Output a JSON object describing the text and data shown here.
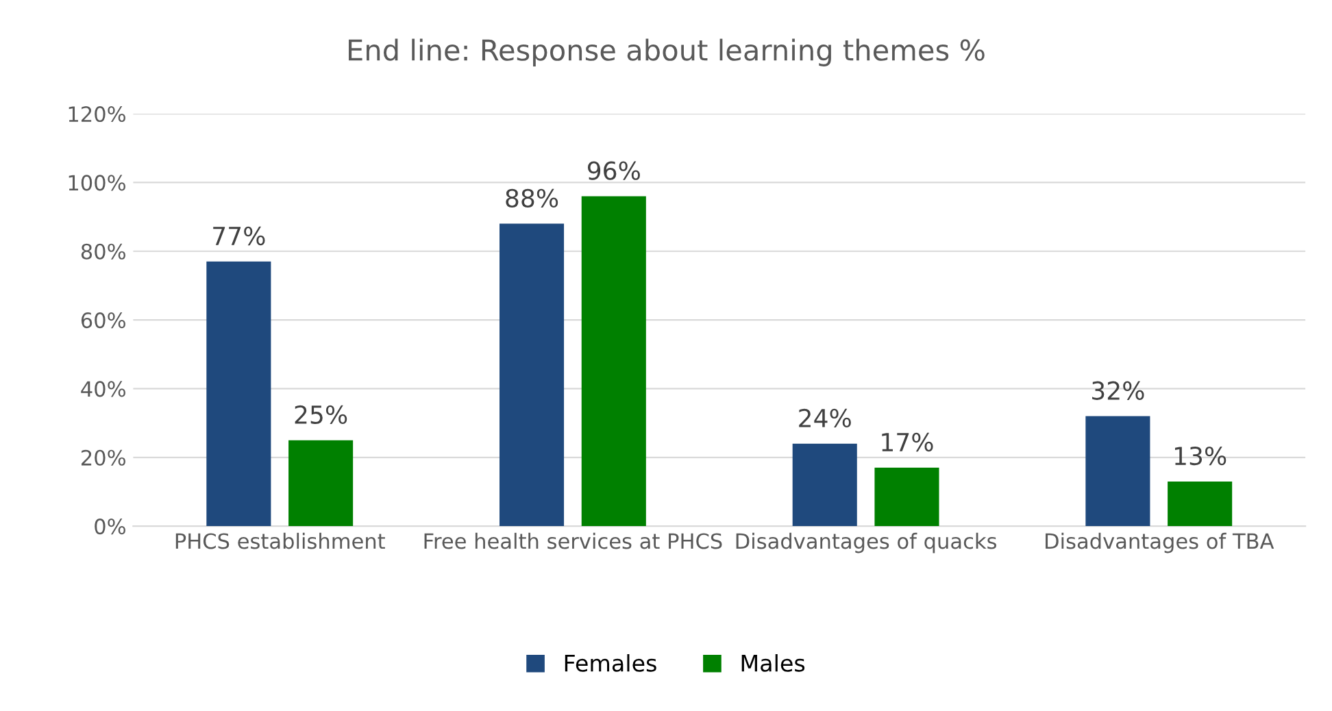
{
  "chart_data": {
    "type": "bar",
    "title": "End line: Response about learning themes %",
    "categories": [
      "PHCS establishment",
      "Free health services at PHCS",
      "Disadvantages of quacks",
      "Disadvantages of TBA"
    ],
    "series": [
      {
        "name": "Females",
        "color": "#1f497d",
        "values": [
          77,
          88,
          24,
          32
        ],
        "value_labels": [
          "77%",
          "88%",
          "24%",
          "32%"
        ]
      },
      {
        "name": "Males",
        "color": "#008000",
        "values": [
          25,
          96,
          17,
          13
        ],
        "value_labels": [
          "25%",
          "96%",
          "17%",
          "13%"
        ]
      }
    ],
    "ylim": [
      0,
      120
    ],
    "yticks": [
      {
        "value": 0,
        "label": "0%"
      },
      {
        "value": 20,
        "label": "20%"
      },
      {
        "value": 40,
        "label": "40%"
      },
      {
        "value": 60,
        "label": "60%"
      },
      {
        "value": 80,
        "label": "80%"
      },
      {
        "value": 100,
        "label": "100%"
      },
      {
        "value": 120,
        "label": "120%"
      }
    ],
    "grid": "y",
    "legend": "bottom"
  }
}
